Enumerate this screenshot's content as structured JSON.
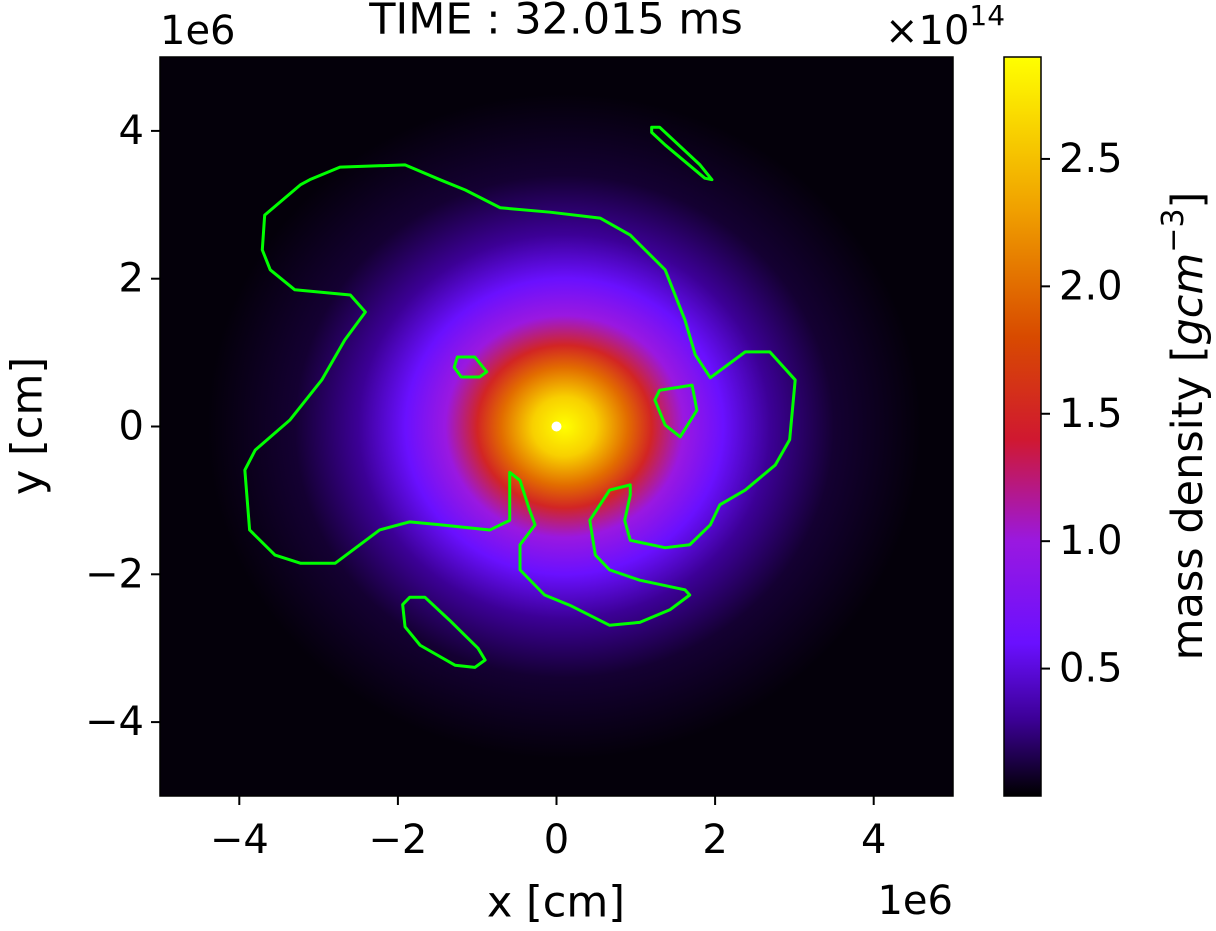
{
  "chart_data": {
    "type": "heatmap",
    "title": "TIME : 32.015 ms",
    "x_label": "x [cm]",
    "y_label": "y [cm]",
    "x_offset_label": "1e6",
    "y_offset_label": "1e6",
    "xlim": [
      -5,
      5
    ],
    "ylim": [
      -5,
      5
    ],
    "xticks": [
      {
        "value": -4,
        "label": "−4"
      },
      {
        "value": -2,
        "label": "−2"
      },
      0,
      2,
      4
    ],
    "yticks": [
      {
        "value": -4,
        "label": "−4"
      },
      {
        "value": -2,
        "label": "−2"
      },
      0,
      2,
      4
    ],
    "colormap": [
      [
        0,
        "#000000"
      ],
      [
        0.3,
        "#3c0096"
      ],
      [
        0.6,
        "#6a10ff"
      ],
      [
        1.0,
        "#9a18e0"
      ],
      [
        1.4,
        "#d01830"
      ],
      [
        1.8,
        "#d84a00"
      ],
      [
        2.3,
        "#f0a000"
      ],
      [
        2.9,
        "#ffff00"
      ]
    ],
    "clim": [
      0,
      2.9
    ],
    "colorbar_ticks": [
      {
        "value": 0.5,
        "label": "0.5"
      },
      {
        "value": 1.0,
        "label": "1.0"
      },
      {
        "value": 1.5,
        "label": "1.5"
      },
      {
        "value": 2.0,
        "label": "2.0"
      },
      {
        "value": 2.5,
        "label": "2.5"
      }
    ],
    "colorbar_offset": {
      "base": "×10",
      "exp": "14"
    },
    "colorbar_label": {
      "text": "mass density [",
      "math": "gcm",
      "exp": "−3",
      "close": "]"
    },
    "density_center": [
      0.1,
      0
    ],
    "density_profile": {
      "r": [
        0,
        0.4,
        0.8,
        1.1,
        1.5,
        2.0,
        2.6,
        3.4,
        4.5
      ],
      "values": [
        2.9,
        2.6,
        2.0,
        1.5,
        1.0,
        0.6,
        0.3,
        0.1,
        0.02
      ]
    },
    "contour_color": "#00ff00",
    "contours": [
      {
        "x": [
          -3.23,
          -3.68,
          -3.71,
          -3.61,
          -3.3,
          -2.6,
          -2.41,
          -2.67,
          -2.96,
          -3.36,
          -3.8,
          -3.93,
          -3.87,
          -3.55,
          -3.23,
          -2.79,
          -2.23,
          -1.85,
          -1.47,
          -0.84,
          -0.59,
          -0.59,
          -0.46,
          -0.34,
          -0.27,
          -0.46,
          -0.46,
          -0.15,
          0.17,
          0.67,
          1.05,
          1.43,
          1.68,
          1.62,
          1.05,
          0.67,
          0.49,
          0.42,
          0.67,
          0.93,
          0.93,
          0.86,
          0.93,
          1.37,
          1.68,
          1.94,
          2.06,
          2.38,
          2.76,
          2.94,
          3.01,
          2.69,
          2.38,
          1.94,
          1.75,
          1.62,
          1.37,
          0.93,
          0.55,
          -0.08,
          -0.71,
          -1.15,
          -1.47,
          -1.91,
          -2.73,
          -3.11
        ],
        "y": [
          3.27,
          2.86,
          2.39,
          2.12,
          1.85,
          1.78,
          1.55,
          1.17,
          0.63,
          0.09,
          -0.32,
          -0.59,
          -1.4,
          -1.74,
          -1.85,
          -1.85,
          -1.4,
          -1.29,
          -1.33,
          -1.4,
          -1.27,
          -0.62,
          -0.73,
          -1.13,
          -1.33,
          -1.6,
          -1.94,
          -2.28,
          -2.42,
          -2.69,
          -2.65,
          -2.48,
          -2.28,
          -2.21,
          -2.08,
          -1.94,
          -1.74,
          -1.27,
          -0.86,
          -0.79,
          -0.93,
          -1.27,
          -1.54,
          -1.64,
          -1.6,
          -1.33,
          -1.06,
          -0.86,
          -0.52,
          -0.18,
          0.63,
          1.01,
          1.01,
          0.66,
          0.97,
          1.44,
          2.12,
          2.59,
          2.82,
          2.9,
          2.96,
          3.2,
          3.34,
          3.54,
          3.51,
          3.34
        ]
      },
      {
        "x": [
          1.2,
          1.3,
          1.81,
          1.96,
          1.87,
          1.37,
          1.2
        ],
        "y": [
          4.05,
          4.05,
          3.54,
          3.34,
          3.36,
          3.81,
          3.98
        ]
      },
      {
        "x": [
          -1.25,
          -1.03,
          -0.88,
          -0.97,
          -1.2,
          -1.29
        ],
        "y": [
          0.94,
          0.94,
          0.74,
          0.67,
          0.67,
          0.8
        ]
      },
      {
        "x": [
          1.3,
          1.71,
          1.77,
          1.56,
          1.37,
          1.24
        ],
        "y": [
          0.49,
          0.56,
          0.22,
          -0.14,
          0.02,
          0.36
        ]
      },
      {
        "x": [
          -1.85,
          -1.66,
          -1.35,
          -0.99,
          -0.9,
          -1.03,
          -1.28,
          -1.72,
          -1.91,
          -1.94
        ],
        "y": [
          -2.31,
          -2.31,
          -2.62,
          -3.0,
          -3.16,
          -3.26,
          -3.23,
          -2.96,
          -2.71,
          -2.41
        ]
      }
    ],
    "marker": {
      "x": 0,
      "y": 0,
      "color": "#ffffff"
    }
  }
}
